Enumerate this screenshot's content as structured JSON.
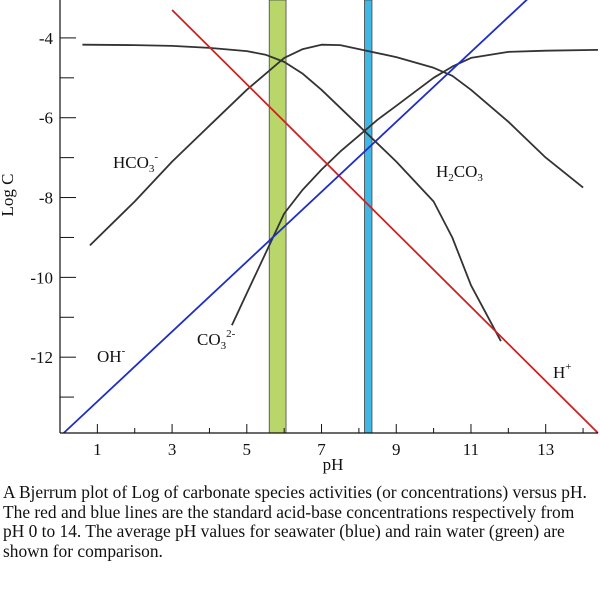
{
  "chart_data": {
    "type": "line",
    "xlabel": "pH",
    "ylabel": "Log C",
    "xlim": [
      0,
      14.4
    ],
    "ylim": [
      -13.9,
      -3.05
    ],
    "x_ticks": [
      1,
      3,
      5,
      7,
      9,
      11,
      13
    ],
    "y_ticks": [
      -4,
      -6,
      -8,
      -10,
      -12
    ],
    "grid": false,
    "series": [
      {
        "name": "HCO3-",
        "label_text": {
          "base": "HCO",
          "sub": "3",
          "sup": "-"
        },
        "color": "#333333",
        "x": [
          0.8,
          2.0,
          3.0,
          4.0,
          5.0,
          6.0,
          6.5,
          7.0,
          7.5,
          8.0,
          9.0,
          10.0,
          10.5,
          11.0,
          12.0,
          13.0,
          14.0
        ],
        "y": [
          -9.2,
          -8.1,
          -7.1,
          -6.2,
          -5.3,
          -4.5,
          -4.28,
          -4.17,
          -4.18,
          -4.28,
          -4.48,
          -4.75,
          -4.95,
          -5.3,
          -6.1,
          -7.0,
          -7.75
        ]
      },
      {
        "name": "H2CO3",
        "label_text": {
          "base": "H",
          "sub": "2",
          "mid": "CO",
          "sub2": "3"
        },
        "color": "#333333",
        "x": [
          0.6,
          2.0,
          3.0,
          4.0,
          5.0,
          5.5,
          6.0,
          6.5,
          7.0,
          8.0,
          9.0,
          10.0,
          10.5,
          11.0,
          11.8
        ],
        "y": [
          -4.17,
          -4.18,
          -4.2,
          -4.25,
          -4.33,
          -4.42,
          -4.6,
          -4.9,
          -5.3,
          -6.2,
          -7.1,
          -8.1,
          -9.0,
          -10.2,
          -11.6
        ]
      },
      {
        "name": "CO3 2-",
        "label_text": {
          "base": "CO",
          "sub": "3",
          "sup": "2-"
        },
        "color": "#333333",
        "x": [
          4.6,
          5.0,
          5.5,
          6.0,
          6.5,
          7.0,
          7.5,
          8.0,
          8.5,
          9.0,
          9.5,
          10.0,
          10.5,
          11.0,
          12.0,
          13.0,
          14.4
        ],
        "y": [
          -11.2,
          -10.4,
          -9.4,
          -8.4,
          -7.8,
          -7.3,
          -6.85,
          -6.45,
          -6.05,
          -5.7,
          -5.35,
          -5.0,
          -4.72,
          -4.5,
          -4.35,
          -4.32,
          -4.3
        ]
      },
      {
        "name": "H+",
        "label_text": {
          "base": "H",
          "sup": "+"
        },
        "color": "#cc2222",
        "x": [
          3.0,
          14.4
        ],
        "y": [
          -3.3,
          -13.9
        ]
      },
      {
        "name": "OH-",
        "label_text": {
          "base": "OH",
          "sup": "-"
        },
        "color": "#1f2fc4",
        "x": [
          0.1,
          12.6
        ],
        "y": [
          -13.9,
          -2.95
        ]
      }
    ],
    "bands": [
      {
        "name": "rain water",
        "x": [
          5.6,
          6.05
        ],
        "color": "#b8d66a"
      },
      {
        "name": "seawater",
        "x": [
          8.15,
          8.35
        ],
        "color": "#3fb8e6"
      }
    ]
  },
  "caption": "A Bjerrum plot of Log of carbonate species activities (or concentrations) versus pH. The red and blue lines are the standard acid-base concentrations respectively from pH 0 to 14. The average pH values for seawater (blue) and rain water (green) are shown for comparison."
}
